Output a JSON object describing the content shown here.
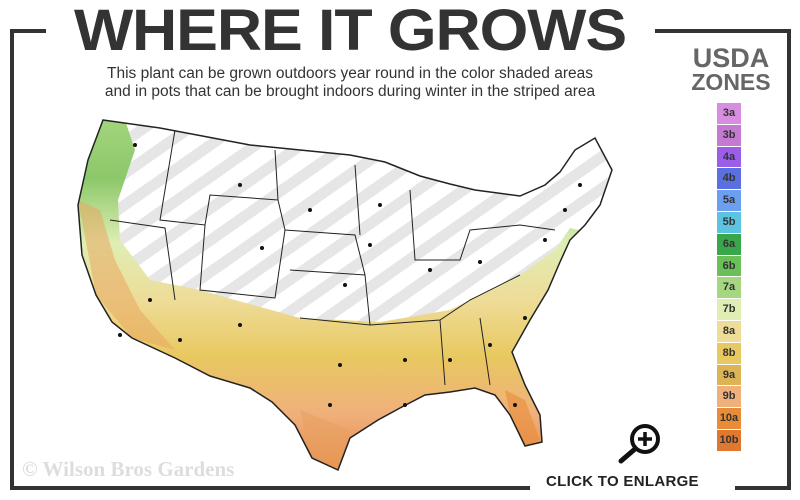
{
  "header": {
    "title": "WHERE IT GROWS",
    "subtitle_line1": "This plant can be grown outdoors year round in the color shaded areas",
    "subtitle_line2": "and in pots that can be brought indoors during winter in the striped area"
  },
  "legend": {
    "title_line1": "USDA",
    "title_line2": "ZONES",
    "zones": [
      {
        "label": "3a",
        "color": "#d78ee0"
      },
      {
        "label": "3b",
        "color": "#c57ad2"
      },
      {
        "label": "4a",
        "color": "#9a5ee8"
      },
      {
        "label": "4b",
        "color": "#5a6fe0"
      },
      {
        "label": "5a",
        "color": "#6c9ff0"
      },
      {
        "label": "5b",
        "color": "#5cc4e0"
      },
      {
        "label": "6a",
        "color": "#3aa64a"
      },
      {
        "label": "6b",
        "color": "#6abf58"
      },
      {
        "label": "7a",
        "color": "#a6d680"
      },
      {
        "label": "7b",
        "color": "#dfeeb4"
      },
      {
        "label": "8a",
        "color": "#eedc98"
      },
      {
        "label": "8b",
        "color": "#e8c860"
      },
      {
        "label": "9a",
        "color": "#dcb454"
      },
      {
        "label": "9b",
        "color": "#f0b07c"
      },
      {
        "label": "10a",
        "color": "#e88c38"
      },
      {
        "label": "10b",
        "color": "#e07830"
      }
    ]
  },
  "map": {
    "outdoor_region": "color shaded",
    "pot_region": "striped"
  },
  "footer": {
    "copyright": "© Wilson Bros Gardens",
    "enlarge_label": "CLICK TO ENLARGE",
    "enlarge_icon": "zoom-in-magnifier-icon"
  }
}
